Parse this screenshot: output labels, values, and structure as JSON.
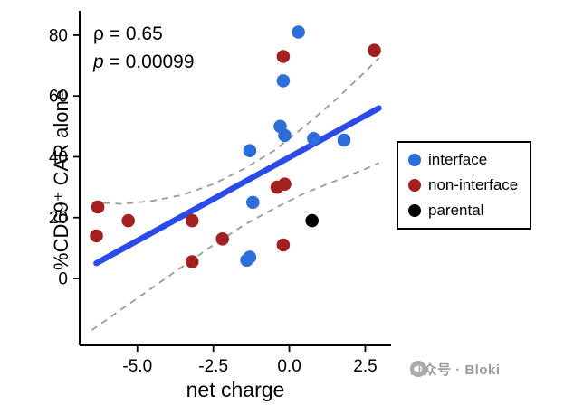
{
  "chart_data": {
    "type": "scatter",
    "title": "",
    "xlabel": "net charge",
    "ylabel": "%CD69⁺ CAR alone",
    "annotation": {
      "rho": "ρ = 0.65",
      "p_symbol": "p",
      "p_rest": " = 0.00099"
    },
    "xlim": [
      -6.9,
      3.35
    ],
    "ylim": [
      -22,
      88
    ],
    "grid": false,
    "legend_position": "right",
    "xticks": {
      "values": [
        -5.0,
        -2.5,
        0.0,
        2.5
      ],
      "labels": [
        "-5.0",
        "-2.5",
        "0.0",
        "2.5"
      ]
    },
    "yticks": {
      "values": [
        0,
        20,
        40,
        60,
        80
      ],
      "labels": [
        "0",
        "20",
        "40",
        "60",
        "80"
      ]
    },
    "series": [
      {
        "name": "interface",
        "color": "#2e6edb",
        "points": [
          [
            0.3,
            81
          ],
          [
            -0.2,
            65
          ],
          [
            -0.3,
            50
          ],
          [
            -0.15,
            47
          ],
          [
            0.8,
            46
          ],
          [
            1.8,
            45.5
          ],
          [
            -1.3,
            42
          ],
          [
            -1.2,
            25
          ],
          [
            -1.3,
            7
          ],
          [
            -1.4,
            6
          ]
        ]
      },
      {
        "name": "non-interface",
        "color": "#a32020",
        "points": [
          [
            2.8,
            75
          ],
          [
            -0.2,
            73
          ],
          [
            -0.15,
            31
          ],
          [
            -0.4,
            30
          ],
          [
            -6.3,
            23.5
          ],
          [
            -5.3,
            19
          ],
          [
            -3.2,
            19
          ],
          [
            -6.35,
            14
          ],
          [
            -2.2,
            13
          ],
          [
            -0.2,
            11
          ],
          [
            -3.2,
            5.5
          ]
        ]
      },
      {
        "name": "parental",
        "color": "#000000",
        "points": [
          [
            0.75,
            19
          ]
        ]
      }
    ],
    "fit_line": {
      "color": "#2b4be8",
      "x": [
        -6.35,
        2.95
      ],
      "y": [
        5,
        56
      ]
    },
    "ci_color": "#9a9a9a",
    "ci_upper": [
      [
        -6.5,
        25
      ],
      [
        -5.5,
        24.5
      ],
      [
        -4.5,
        25.5
      ],
      [
        -3.5,
        27.5
      ],
      [
        -2.5,
        31
      ],
      [
        -1.5,
        36
      ],
      [
        -0.5,
        42
      ],
      [
        0.5,
        50
      ],
      [
        1.5,
        58.5
      ],
      [
        2.5,
        68
      ],
      [
        2.95,
        72.5
      ]
    ],
    "ci_lower": [
      [
        -6.5,
        -17
      ],
      [
        -5.5,
        -10
      ],
      [
        -4.5,
        -3
      ],
      [
        -3.5,
        4
      ],
      [
        -2.5,
        11
      ],
      [
        -1.5,
        17.5
      ],
      [
        -0.5,
        23
      ],
      [
        0.5,
        28
      ],
      [
        1.5,
        32
      ],
      [
        2.5,
        36
      ],
      [
        2.95,
        38
      ]
    ]
  },
  "watermark": {
    "text": "公众号 · Bloki"
  }
}
